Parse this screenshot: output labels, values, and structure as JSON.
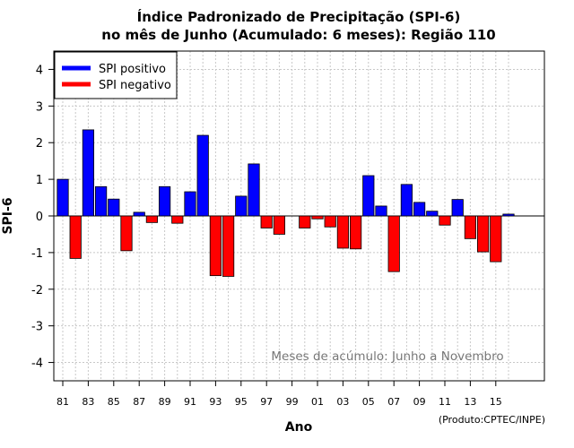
{
  "chart_data": {
    "type": "bar",
    "title_line1": "Índice Padronizado de Precipitação (SPI-6)",
    "title_line2": "no mês de Junho (Acumulado: 6 meses): Região 110",
    "xlabel": "Ano",
    "ylabel": "SPI-6",
    "ylim": [
      -4.5,
      4.5
    ],
    "yticks": [
      -4,
      -3,
      -2,
      -1,
      0,
      1,
      2,
      3,
      4
    ],
    "ytick_labels": [
      "-4",
      "-3",
      "-2",
      "-1",
      "0",
      "1",
      "2",
      "3",
      "4"
    ],
    "xtick_labels": [
      "81",
      "83",
      "85",
      "87",
      "89",
      "91",
      "93",
      "95",
      "97",
      "99",
      "01",
      "03",
      "05",
      "07",
      "09",
      "11",
      "13",
      "15"
    ],
    "grid": true,
    "legend_position": "top-left",
    "legend": [
      {
        "label": "SPI positivo",
        "color": "#0000ff"
      },
      {
        "label": "SPI negativo",
        "color": "#ff0000"
      }
    ],
    "colors": {
      "positive": "#0000ff",
      "negative": "#ff0000",
      "grid": "#c8c8c8"
    },
    "annotation": "Meses de acúmulo: Junho a Novembro",
    "credit": "(Produto:CPTEC/INPE)",
    "series": [
      {
        "name": "SPI-6",
        "x": [
          "1981",
          "1982",
          "1983",
          "1984",
          "1985",
          "1986",
          "1987",
          "1988",
          "1989",
          "1990",
          "1991",
          "1992",
          "1993",
          "1994",
          "1995",
          "1996",
          "1997",
          "1998",
          "1999",
          "2000",
          "2001",
          "2002",
          "2003",
          "2004",
          "2005",
          "2006",
          "2007",
          "2008",
          "2009",
          "2010",
          "2011",
          "2012",
          "2013",
          "2014",
          "2015",
          "2016"
        ],
        "values": [
          1.0,
          -1.16,
          2.35,
          0.8,
          0.46,
          -0.95,
          0.1,
          -0.18,
          0.8,
          -0.2,
          0.66,
          2.2,
          -1.63,
          -1.65,
          0.54,
          1.42,
          -0.33,
          -0.5,
          0.0,
          -0.33,
          -0.08,
          -0.3,
          -0.88,
          -0.9,
          1.1,
          0.27,
          -1.52,
          0.86,
          0.37,
          0.13,
          -0.25,
          0.45,
          -0.62,
          -0.98,
          -1.25,
          0.05
        ]
      }
    ]
  }
}
